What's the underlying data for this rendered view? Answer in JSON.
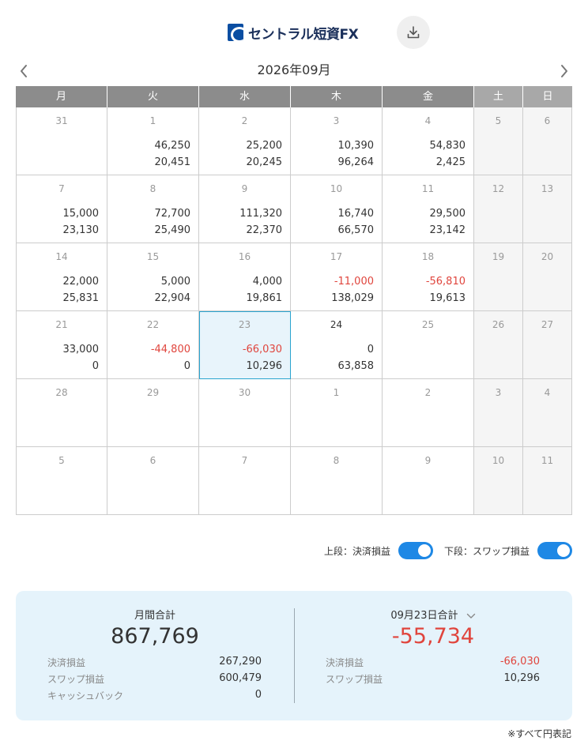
{
  "header": {
    "logo_text": "セントラル短資FX",
    "download_icon": "download-icon"
  },
  "month_nav": {
    "title": "2026年09月",
    "prev_icon": "chevron-left-icon",
    "next_icon": "chevron-right-icon"
  },
  "calendar": {
    "weekdays": [
      "月",
      "火",
      "水",
      "木",
      "金",
      "土",
      "日"
    ],
    "weeks": [
      [
        {
          "day": "31",
          "v1": "",
          "v2": ""
        },
        {
          "day": "1",
          "v1": "46,250",
          "v2": "20,451"
        },
        {
          "day": "2",
          "v1": "25,200",
          "v2": "20,245"
        },
        {
          "day": "3",
          "v1": "10,390",
          "v2": "96,264"
        },
        {
          "day": "4",
          "v1": "54,830",
          "v2": "2,425"
        },
        {
          "day": "5",
          "v1": "",
          "v2": ""
        },
        {
          "day": "6",
          "v1": "",
          "v2": ""
        }
      ],
      [
        {
          "day": "7",
          "v1": "15,000",
          "v2": "23,130"
        },
        {
          "day": "8",
          "v1": "72,700",
          "v2": "25,490"
        },
        {
          "day": "9",
          "v1": "111,320",
          "v2": "22,370"
        },
        {
          "day": "10",
          "v1": "16,740",
          "v2": "66,570"
        },
        {
          "day": "11",
          "v1": "29,500",
          "v2": "23,142"
        },
        {
          "day": "12",
          "v1": "",
          "v2": ""
        },
        {
          "day": "13",
          "v1": "",
          "v2": ""
        }
      ],
      [
        {
          "day": "14",
          "v1": "22,000",
          "v2": "25,831"
        },
        {
          "day": "15",
          "v1": "5,000",
          "v2": "22,904"
        },
        {
          "day": "16",
          "v1": "4,000",
          "v2": "19,861"
        },
        {
          "day": "17",
          "v1": "-11,000",
          "v2": "138,029"
        },
        {
          "day": "18",
          "v1": "-56,810",
          "v2": "19,613"
        },
        {
          "day": "19",
          "v1": "",
          "v2": ""
        },
        {
          "day": "20",
          "v1": "",
          "v2": ""
        }
      ],
      [
        {
          "day": "21",
          "v1": "33,000",
          "v2": "0"
        },
        {
          "day": "22",
          "v1": "-44,800",
          "v2": "0"
        },
        {
          "day": "23",
          "v1": "-66,030",
          "v2": "10,296"
        },
        {
          "day": "24",
          "v1": "0",
          "v2": "63,858"
        },
        {
          "day": "25",
          "v1": "",
          "v2": ""
        },
        {
          "day": "26",
          "v1": "",
          "v2": ""
        },
        {
          "day": "27",
          "v1": "",
          "v2": ""
        }
      ],
      [
        {
          "day": "28",
          "v1": "",
          "v2": ""
        },
        {
          "day": "29",
          "v1": "",
          "v2": ""
        },
        {
          "day": "30",
          "v1": "",
          "v2": ""
        },
        {
          "day": "1",
          "v1": "",
          "v2": ""
        },
        {
          "day": "2",
          "v1": "",
          "v2": ""
        },
        {
          "day": "3",
          "v1": "",
          "v2": ""
        },
        {
          "day": "4",
          "v1": "",
          "v2": ""
        }
      ],
      [
        {
          "day": "5",
          "v1": "",
          "v2": ""
        },
        {
          "day": "6",
          "v1": "",
          "v2": ""
        },
        {
          "day": "7",
          "v1": "",
          "v2": ""
        },
        {
          "day": "8",
          "v1": "",
          "v2": ""
        },
        {
          "day": "9",
          "v1": "",
          "v2": ""
        },
        {
          "day": "10",
          "v1": "",
          "v2": ""
        },
        {
          "day": "11",
          "v1": "",
          "v2": ""
        }
      ]
    ],
    "selected_date": "23",
    "today_date": "24",
    "colors": {
      "negative": "#e0453d",
      "header_bg": "#8c8c8c",
      "selected_border": "#2aa4cf",
      "toggle_on": "#1e88e5"
    }
  },
  "toggles": {
    "upper_label": "上段：決済損益",
    "upper_on": true,
    "lower_label": "下段：スワップ損益",
    "lower_on": true
  },
  "summary": {
    "monthly": {
      "title": "月間合計",
      "total": "867,769",
      "rows": [
        {
          "label": "決済損益",
          "value": "267,290"
        },
        {
          "label": "スワップ損益",
          "value": "600,479"
        },
        {
          "label": "キャッシュバック",
          "value": "0"
        }
      ]
    },
    "daily": {
      "title": "09月23日合計",
      "total": "-55,734",
      "rows": [
        {
          "label": "決済損益",
          "value": "-66,030"
        },
        {
          "label": "スワップ損益",
          "value": "10,296"
        }
      ]
    }
  },
  "footnote": "※すべて円表記"
}
